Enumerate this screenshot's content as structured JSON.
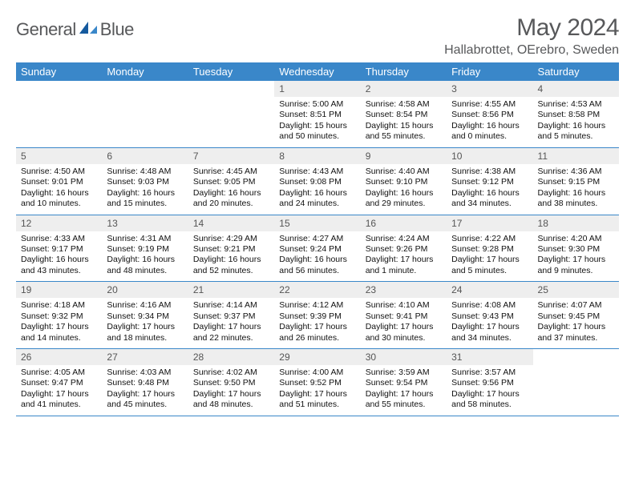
{
  "brand": {
    "general": "General",
    "blue": "Blue"
  },
  "title": "May 2024",
  "location": "Hallabrottet, OErebro, Sweden",
  "dow": [
    "Sunday",
    "Monday",
    "Tuesday",
    "Wednesday",
    "Thursday",
    "Friday",
    "Saturday"
  ],
  "colors": {
    "header_bg": "#3a87c9",
    "header_text": "#ffffff",
    "cell_header_bg": "#eeeeee",
    "border": "#3a87c9",
    "text": "#111111",
    "muted": "#57585a"
  },
  "typography": {
    "title_fontsize": 30,
    "location_fontsize": 16,
    "dow_fontsize": 13,
    "daynum_fontsize": 12,
    "body_fontsize": 10.5
  },
  "weeks": [
    [
      {
        "n": "",
        "sr": "",
        "ss": "",
        "dl": ""
      },
      {
        "n": "",
        "sr": "",
        "ss": "",
        "dl": ""
      },
      {
        "n": "",
        "sr": "",
        "ss": "",
        "dl": ""
      },
      {
        "n": "1",
        "sr": "5:00 AM",
        "ss": "8:51 PM",
        "dl": "15 hours and 50 minutes."
      },
      {
        "n": "2",
        "sr": "4:58 AM",
        "ss": "8:54 PM",
        "dl": "15 hours and 55 minutes."
      },
      {
        "n": "3",
        "sr": "4:55 AM",
        "ss": "8:56 PM",
        "dl": "16 hours and 0 minutes."
      },
      {
        "n": "4",
        "sr": "4:53 AM",
        "ss": "8:58 PM",
        "dl": "16 hours and 5 minutes."
      }
    ],
    [
      {
        "n": "5",
        "sr": "4:50 AM",
        "ss": "9:01 PM",
        "dl": "16 hours and 10 minutes."
      },
      {
        "n": "6",
        "sr": "4:48 AM",
        "ss": "9:03 PM",
        "dl": "16 hours and 15 minutes."
      },
      {
        "n": "7",
        "sr": "4:45 AM",
        "ss": "9:05 PM",
        "dl": "16 hours and 20 minutes."
      },
      {
        "n": "8",
        "sr": "4:43 AM",
        "ss": "9:08 PM",
        "dl": "16 hours and 24 minutes."
      },
      {
        "n": "9",
        "sr": "4:40 AM",
        "ss": "9:10 PM",
        "dl": "16 hours and 29 minutes."
      },
      {
        "n": "10",
        "sr": "4:38 AM",
        "ss": "9:12 PM",
        "dl": "16 hours and 34 minutes."
      },
      {
        "n": "11",
        "sr": "4:36 AM",
        "ss": "9:15 PM",
        "dl": "16 hours and 38 minutes."
      }
    ],
    [
      {
        "n": "12",
        "sr": "4:33 AM",
        "ss": "9:17 PM",
        "dl": "16 hours and 43 minutes."
      },
      {
        "n": "13",
        "sr": "4:31 AM",
        "ss": "9:19 PM",
        "dl": "16 hours and 48 minutes."
      },
      {
        "n": "14",
        "sr": "4:29 AM",
        "ss": "9:21 PM",
        "dl": "16 hours and 52 minutes."
      },
      {
        "n": "15",
        "sr": "4:27 AM",
        "ss": "9:24 PM",
        "dl": "16 hours and 56 minutes."
      },
      {
        "n": "16",
        "sr": "4:24 AM",
        "ss": "9:26 PM",
        "dl": "17 hours and 1 minute."
      },
      {
        "n": "17",
        "sr": "4:22 AM",
        "ss": "9:28 PM",
        "dl": "17 hours and 5 minutes."
      },
      {
        "n": "18",
        "sr": "4:20 AM",
        "ss": "9:30 PM",
        "dl": "17 hours and 9 minutes."
      }
    ],
    [
      {
        "n": "19",
        "sr": "4:18 AM",
        "ss": "9:32 PM",
        "dl": "17 hours and 14 minutes."
      },
      {
        "n": "20",
        "sr": "4:16 AM",
        "ss": "9:34 PM",
        "dl": "17 hours and 18 minutes."
      },
      {
        "n": "21",
        "sr": "4:14 AM",
        "ss": "9:37 PM",
        "dl": "17 hours and 22 minutes."
      },
      {
        "n": "22",
        "sr": "4:12 AM",
        "ss": "9:39 PM",
        "dl": "17 hours and 26 minutes."
      },
      {
        "n": "23",
        "sr": "4:10 AM",
        "ss": "9:41 PM",
        "dl": "17 hours and 30 minutes."
      },
      {
        "n": "24",
        "sr": "4:08 AM",
        "ss": "9:43 PM",
        "dl": "17 hours and 34 minutes."
      },
      {
        "n": "25",
        "sr": "4:07 AM",
        "ss": "9:45 PM",
        "dl": "17 hours and 37 minutes."
      }
    ],
    [
      {
        "n": "26",
        "sr": "4:05 AM",
        "ss": "9:47 PM",
        "dl": "17 hours and 41 minutes."
      },
      {
        "n": "27",
        "sr": "4:03 AM",
        "ss": "9:48 PM",
        "dl": "17 hours and 45 minutes."
      },
      {
        "n": "28",
        "sr": "4:02 AM",
        "ss": "9:50 PM",
        "dl": "17 hours and 48 minutes."
      },
      {
        "n": "29",
        "sr": "4:00 AM",
        "ss": "9:52 PM",
        "dl": "17 hours and 51 minutes."
      },
      {
        "n": "30",
        "sr": "3:59 AM",
        "ss": "9:54 PM",
        "dl": "17 hours and 55 minutes."
      },
      {
        "n": "31",
        "sr": "3:57 AM",
        "ss": "9:56 PM",
        "dl": "17 hours and 58 minutes."
      },
      {
        "n": "",
        "sr": "",
        "ss": "",
        "dl": ""
      }
    ]
  ],
  "labels": {
    "sunrise": "Sunrise: ",
    "sunset": "Sunset: ",
    "daylight": "Daylight: "
  }
}
